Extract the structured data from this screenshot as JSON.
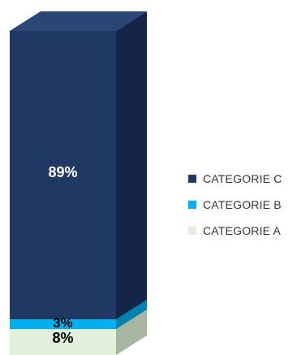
{
  "chart_data": {
    "type": "bar",
    "stacked": true,
    "style": "3d-column",
    "categories": [
      ""
    ],
    "series": [
      {
        "name": "CATEGORIE A",
        "values": [
          8
        ],
        "label": "8%",
        "color": "#e2efda",
        "side_color": "#a8b5a0"
      },
      {
        "name": "CATEGORIE B",
        "values": [
          3
        ],
        "label": "3%",
        "color": "#00b0f0",
        "side_color": "#0083b3"
      },
      {
        "name": "CATEGORIE C",
        "values": [
          89
        ],
        "label": "89%",
        "color": "#203864",
        "side_color": "#15254a",
        "top_color": "#2a4677"
      }
    ],
    "ylim": [
      0,
      100
    ],
    "legend": {
      "position": "right",
      "items": [
        {
          "label": "CATEGORIE C",
          "color": "#203864"
        },
        {
          "label": "CATEGORIE B",
          "color": "#00b0f0"
        },
        {
          "label": "CATEGORIE A",
          "color": "#e2efda"
        }
      ]
    }
  }
}
